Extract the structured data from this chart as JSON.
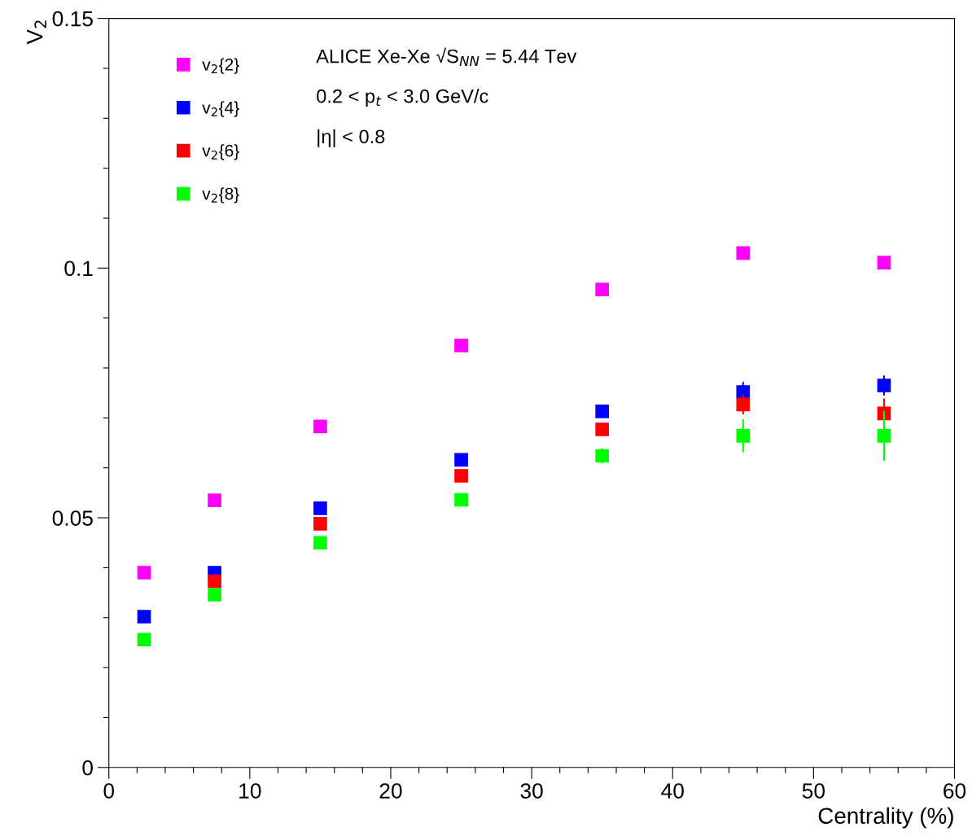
{
  "chart_data": {
    "type": "scatter",
    "xlabel": "Centrality (%)",
    "ylabel": "V$_{2}$",
    "x": [
      2.5,
      7.5,
      15,
      25,
      35,
      45,
      55
    ],
    "series": [
      {
        "name": "v$_{2}${2}",
        "color": "#ff00ff",
        "values": [
          0.039,
          0.0535,
          0.0683,
          0.0845,
          0.0957,
          0.103,
          0.1011
        ]
      },
      {
        "name": "v$_{2}${4}",
        "color": "#0000ff",
        "values": [
          0.0302,
          0.039,
          0.0519,
          0.0616,
          0.0713,
          0.0752,
          0.0765
        ],
        "errors": [
          null,
          null,
          null,
          null,
          null,
          0.002,
          0.002
        ]
      },
      {
        "name": "v$_{2}${6}",
        "color": "#ff0000",
        "values": [
          null,
          0.0373,
          0.0488,
          0.0584,
          0.0677,
          0.0727,
          0.0709
        ],
        "errors": [
          null,
          null,
          null,
          null,
          null,
          0.002,
          0.003
        ]
      },
      {
        "name": "v$_{2}${8}",
        "color": "#00ff00",
        "values": [
          0.0256,
          0.0346,
          0.045,
          0.0536,
          0.0624,
          0.0664,
          0.0664
        ],
        "errors": [
          null,
          null,
          null,
          null,
          0.0015,
          0.0033,
          0.005
        ]
      }
    ],
    "xlim": [
      0,
      60
    ],
    "xticks": [
      0,
      {
        "value": 2,
        "label": null
      },
      {
        "value": 4,
        "label": null
      },
      {
        "value": 6,
        "label": null
      },
      {
        "value": 8,
        "label": null
      },
      10,
      {
        "value": 12,
        "label": null
      },
      {
        "value": 14,
        "label": null
      },
      {
        "value": 16,
        "label": null
      },
      {
        "value": 18,
        "label": null
      },
      20,
      {
        "value": 22,
        "label": null
      },
      {
        "value": 24,
        "label": null
      },
      {
        "value": 26,
        "label": null
      },
      {
        "value": 28,
        "label": null
      },
      30,
      {
        "value": 32,
        "label": null
      },
      {
        "value": 34,
        "label": null
      },
      {
        "value": 36,
        "label": null
      },
      {
        "value": 38,
        "label": null
      },
      40,
      {
        "value": 42,
        "label": null
      },
      {
        "value": 44,
        "label": null
      },
      {
        "value": 46,
        "label": null
      },
      {
        "value": 48,
        "label": null
      },
      50,
      {
        "value": 52,
        "label": null
      },
      {
        "value": 54,
        "label": null
      },
      {
        "value": 56,
        "label": null
      },
      {
        "value": 58,
        "label": null
      },
      60
    ],
    "ylim": [
      0,
      0.15
    ],
    "yticks": [
      0,
      {
        "value": 0.01,
        "label": null
      },
      {
        "value": 0.02,
        "label": null
      },
      {
        "value": 0.03,
        "label": null
      },
      {
        "value": 0.04,
        "label": null
      },
      0.05,
      {
        "value": 0.06,
        "label": null
      },
      {
        "value": 0.07,
        "label": null
      },
      {
        "value": 0.08,
        "label": null
      },
      {
        "value": 0.09,
        "label": null
      },
      0.1,
      {
        "value": 0.11,
        "label": null
      },
      {
        "value": 0.12,
        "label": null
      },
      {
        "value": 0.13,
        "label": null
      },
      {
        "value": 0.14,
        "label": null
      },
      0.15
    ],
    "marker": "square",
    "legend": "top left",
    "grid": false,
    "annotations": [
      "ALICE Xe-Xe √S$_{NN}$ = 5.44 Tev",
      "0.2 < p$_{t}$ < 3.0 GeV/c",
      "|η| < 0.8"
    ]
  }
}
